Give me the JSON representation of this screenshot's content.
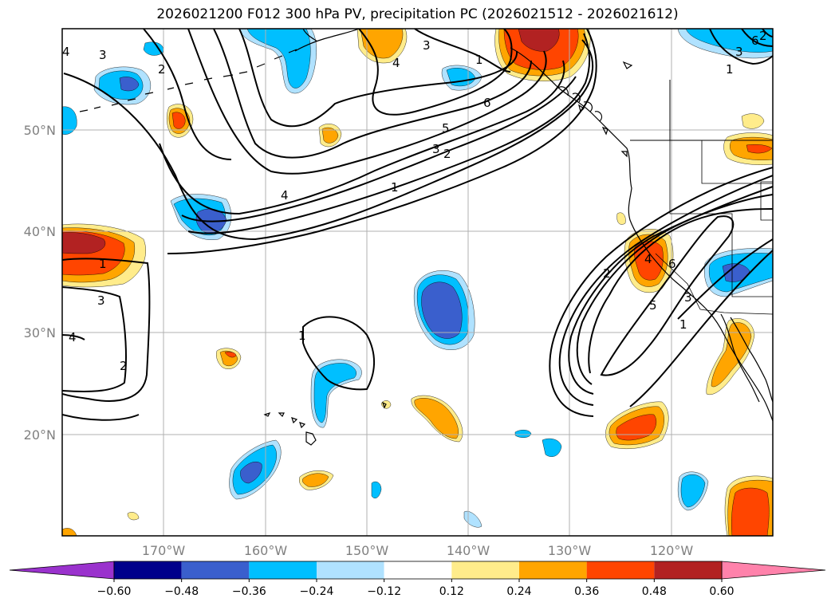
{
  "title": "2026021200 F012 300 hPa PV, precipitation PC (2026021512 - 2026021612)",
  "lat_labels": [
    "50°N",
    "40°N",
    "30°N",
    "20°N"
  ],
  "lon_labels": [
    "170°W",
    "160°W",
    "150°W",
    "140°W",
    "130°W",
    "120°W"
  ],
  "colorbar": {
    "ticks": [
      "−0.60",
      "−0.48",
      "−0.36",
      "−0.24",
      "−0.12",
      "0.12",
      "0.24",
      "0.36",
      "0.48",
      "0.60"
    ],
    "colors": [
      "#9a32cd",
      "#00008b",
      "#3a5fcd",
      "#00bfff",
      "#b0e2ff",
      "#ffffff",
      "#ffec8b",
      "#ffa500",
      "#ff4500",
      "#b22222",
      "#ff82ab"
    ]
  },
  "palette": {
    "pos1": "#ffec8b",
    "pos2": "#ffa500",
    "pos3": "#ff4500",
    "pos4": "#b22222",
    "neg1": "#b0e2ff",
    "neg2": "#00bfff",
    "neg3": "#3a5fcd"
  },
  "contour_labels": [
    "3",
    "2",
    "4",
    "3",
    "4",
    "1",
    "6",
    "5",
    "3",
    "2",
    "1",
    "4",
    "1",
    "3",
    "4",
    "2",
    "1",
    "2",
    "4",
    "5",
    "6",
    "3",
    "1",
    "1",
    "3",
    "6",
    "2"
  ]
}
